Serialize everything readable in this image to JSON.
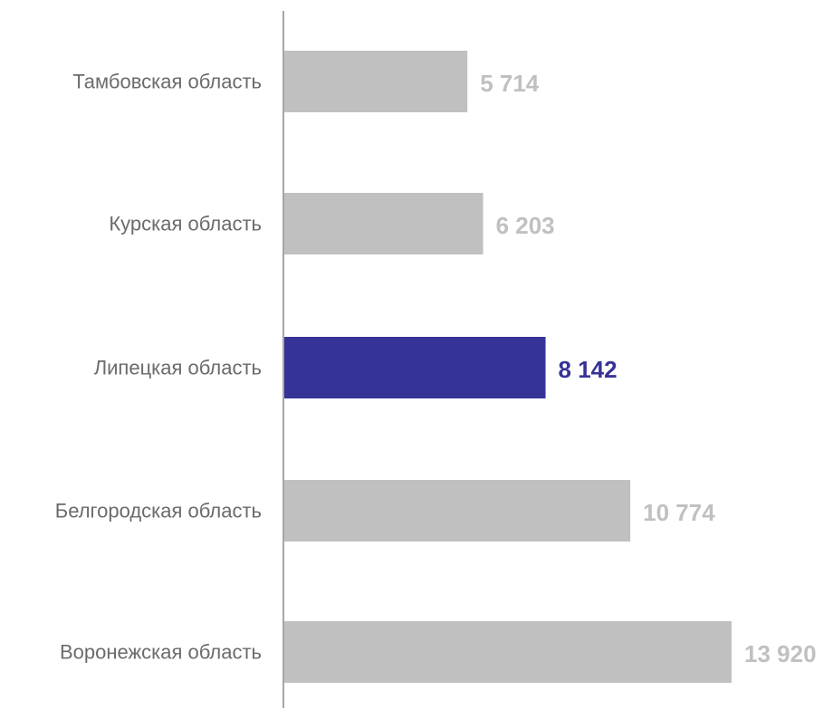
{
  "chart_data": {
    "type": "bar",
    "orientation": "horizontal",
    "categories": [
      "Тамбовская область",
      "Курская область",
      "Липецкая область",
      "Белгородская область",
      "Воронежская область"
    ],
    "values": [
      5714,
      6203,
      8142,
      10774,
      13920
    ],
    "value_labels": [
      "5 714",
      "6 203",
      "8 142",
      "10 774",
      "13 920"
    ],
    "highlight_index": 2,
    "title": "",
    "xlabel": "",
    "ylabel": "",
    "grid": false,
    "legend": "none",
    "xlim": [
      0,
      13920
    ]
  },
  "colors": {
    "bar_default": "#c0c0c0",
    "bar_highlight": "#363396",
    "label_default": "#c0c0c0",
    "label_highlight": "#363396",
    "axis": "#a6a6a6",
    "category_text": "#6b6b6b"
  }
}
